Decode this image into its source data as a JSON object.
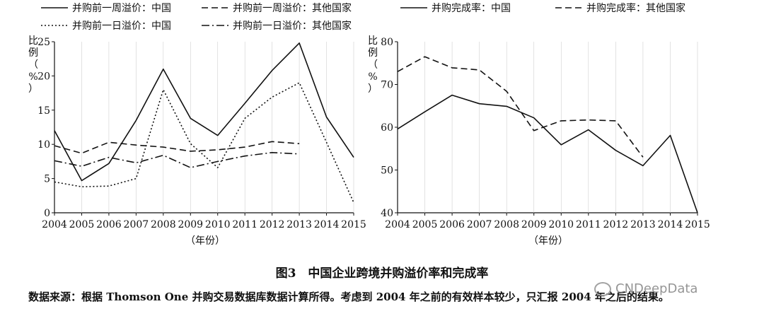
{
  "chart_data": [
    {
      "type": "line",
      "title": "",
      "xlabel": "（年份）",
      "ylabel": "比例（%）",
      "ylim": [
        0,
        25
      ],
      "yticks": [
        0,
        5,
        10,
        15,
        20,
        25
      ],
      "x": [
        "2004",
        "2005",
        "2006",
        "2007",
        "2008",
        "2009",
        "2010",
        "2011",
        "2012",
        "2013",
        "2014",
        "2015"
      ],
      "series": [
        {
          "name": "并购前一周溢价：中国",
          "style": "solid",
          "values": [
            12,
            4.7,
            7.2,
            13.5,
            21,
            13.8,
            11.3,
            16,
            20.8,
            24.8,
            14,
            8.1
          ]
        },
        {
          "name": "并购前一周溢价：其他国家",
          "style": "dashed",
          "values": [
            9.8,
            8.7,
            10.3,
            9.9,
            9.6,
            9.0,
            9.2,
            9.6,
            10.4,
            10.1,
            null,
            null
          ]
        },
        {
          "name": "并购前一日溢价：中国",
          "style": "dotted",
          "values": [
            4.5,
            3.8,
            3.9,
            5.0,
            18,
            10.1,
            6.6,
            13.8,
            16.9,
            19.0,
            10.3,
            1.5
          ]
        },
        {
          "name": "并购前一日溢价：其他国家",
          "style": "dashdot",
          "values": [
            7.6,
            6.8,
            8.1,
            7.3,
            8.4,
            6.6,
            7.5,
            8.3,
            8.8,
            8.6,
            null,
            null
          ]
        }
      ]
    },
    {
      "type": "line",
      "title": "",
      "xlabel": "（年份）",
      "ylabel": "比例（%）",
      "ylim": [
        40,
        80
      ],
      "yticks": [
        40,
        50,
        60,
        70,
        80
      ],
      "x": [
        "2004",
        "2005",
        "2006",
        "2007",
        "2008",
        "2009",
        "2010",
        "2011",
        "2012",
        "2013",
        "2014",
        "2015"
      ],
      "series": [
        {
          "name": "并购完成率：中国",
          "style": "solid",
          "values": [
            59.6,
            63.6,
            67.5,
            65.5,
            64.9,
            62.2,
            55.9,
            59.4,
            54.6,
            51.0,
            58.1,
            40.0
          ]
        },
        {
          "name": "并购完成率：其他国家",
          "style": "dashed",
          "values": [
            73,
            76.5,
            73.9,
            73.4,
            68.4,
            59.2,
            61.5,
            61.7,
            61.5,
            53.0,
            null,
            null
          ]
        }
      ]
    }
  ],
  "caption": "图3　中国企业跨境并购溢价率和完成率",
  "source_note": "数据来源：根据 Thomson One 并购交易数据库数据计算所得。考虑到 2004 年之前的有效样本较少，只汇报 2004 年之后的结果。",
  "watermark": "CNDeepData",
  "ylabel_chars": [
    "比",
    "例",
    "（",
    "%",
    "）"
  ]
}
